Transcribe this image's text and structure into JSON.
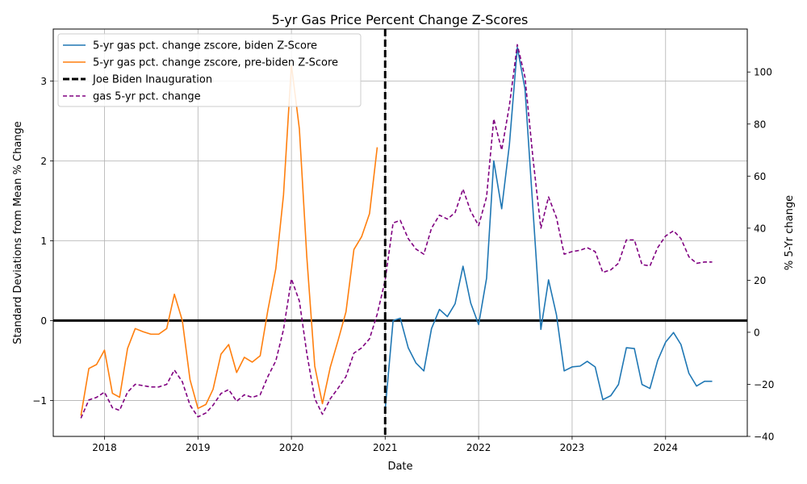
{
  "chart_data": {
    "type": "line",
    "title": "5-yr Gas Price Percent Change Z-Scores",
    "xlabel": "Date",
    "ylabel": "Standard Deviations from Mean % Change",
    "y2label": "% 5-Yr change",
    "xlim": [
      "2017-06-15",
      "2024-11-15"
    ],
    "ylim": [
      -1.45,
      3.65
    ],
    "y2lim": [
      -40,
      116.5
    ],
    "x_ticks": [
      "2018",
      "2019",
      "2020",
      "2021",
      "2022",
      "2023",
      "2024"
    ],
    "y_ticks": [
      "−1",
      "0",
      "1",
      "2",
      "3"
    ],
    "y2_ticks": [
      "−40",
      "−20",
      "0",
      "20",
      "40",
      "60",
      "80",
      "100"
    ],
    "grid": true,
    "legend_position": "top-left",
    "zero_line": 0,
    "inauguration_date": "2021-01-01",
    "series": [
      {
        "name": "5-yr gas pct. change zscore, biden Z-Score",
        "axis": "left",
        "color": "#1f77b4",
        "style": "solid",
        "x": [
          "2021-01",
          "2021-02",
          "2021-03",
          "2021-04",
          "2021-05",
          "2021-06",
          "2021-07",
          "2021-08",
          "2021-09",
          "2021-10",
          "2021-11",
          "2021-12",
          "2022-01",
          "2022-02",
          "2022-03",
          "2022-04",
          "2022-05",
          "2022-06",
          "2022-07",
          "2022-08",
          "2022-09",
          "2022-10",
          "2022-11",
          "2022-12",
          "2023-01",
          "2023-02",
          "2023-03",
          "2023-04",
          "2023-05",
          "2023-06",
          "2023-07",
          "2023-08",
          "2023-09",
          "2023-10",
          "2023-11",
          "2023-12",
          "2024-01",
          "2024-02",
          "2024-03",
          "2024-04",
          "2024-05",
          "2024-06",
          "2024-07"
        ],
        "values": [
          -1.12,
          0.0,
          0.03,
          -0.34,
          -0.53,
          -0.63,
          -0.1,
          0.14,
          0.05,
          0.21,
          0.68,
          0.22,
          -0.05,
          0.53,
          2.0,
          1.4,
          2.2,
          3.42,
          2.9,
          1.4,
          -0.11,
          0.51,
          0.07,
          -0.63,
          -0.58,
          -0.57,
          -0.51,
          -0.58,
          -0.99,
          -0.94,
          -0.8,
          -0.34,
          -0.35,
          -0.8,
          -0.85,
          -0.5,
          -0.27,
          -0.15,
          -0.3,
          -0.66,
          -0.82,
          -0.76,
          -0.76
        ]
      },
      {
        "name": "5-yr gas pct. change zscore, pre-biden Z-Score",
        "axis": "left",
        "color": "#ff7f0e",
        "style": "solid",
        "x": [
          "2017-10",
          "2017-11",
          "2017-12",
          "2018-01",
          "2018-02",
          "2018-03",
          "2018-04",
          "2018-05",
          "2018-06",
          "2018-07",
          "2018-08",
          "2018-09",
          "2018-10",
          "2018-11",
          "2018-12",
          "2019-01",
          "2019-02",
          "2019-03",
          "2019-04",
          "2019-05",
          "2019-06",
          "2019-07",
          "2019-08",
          "2019-09",
          "2019-10",
          "2019-11",
          "2019-12",
          "2020-01",
          "2020-02",
          "2020-03",
          "2020-04",
          "2020-05",
          "2020-06",
          "2020-07",
          "2020-08",
          "2020-09",
          "2020-10",
          "2020-11",
          "2020-12"
        ],
        "values": [
          -1.19,
          -0.6,
          -0.55,
          -0.37,
          -0.91,
          -0.96,
          -0.35,
          -0.1,
          -0.14,
          -0.17,
          -0.17,
          -0.1,
          0.33,
          0.0,
          -0.74,
          -1.1,
          -1.05,
          -0.86,
          -0.42,
          -0.3,
          -0.65,
          -0.46,
          -0.52,
          -0.44,
          0.13,
          0.65,
          1.57,
          3.2,
          2.4,
          0.8,
          -0.57,
          -1.04,
          -0.58,
          -0.25,
          0.11,
          0.89,
          1.05,
          1.34,
          2.17
        ]
      },
      {
        "name": "Joe Biden Inauguration",
        "axis": "left",
        "color": "#000000",
        "style": "dashed-vertical"
      },
      {
        "name": "gas 5-yr pct. change",
        "axis": "right",
        "color": "#800080",
        "style": "dashed",
        "x": [
          "2017-10",
          "2017-11",
          "2017-12",
          "2018-01",
          "2018-02",
          "2018-03",
          "2018-04",
          "2018-05",
          "2018-06",
          "2018-07",
          "2018-08",
          "2018-09",
          "2018-10",
          "2018-11",
          "2018-12",
          "2019-01",
          "2019-02",
          "2019-03",
          "2019-04",
          "2019-05",
          "2019-06",
          "2019-07",
          "2019-08",
          "2019-09",
          "2019-10",
          "2019-11",
          "2019-12",
          "2020-01",
          "2020-02",
          "2020-03",
          "2020-04",
          "2020-05",
          "2020-06",
          "2020-07",
          "2020-08",
          "2020-09",
          "2020-10",
          "2020-11",
          "2020-12",
          "2021-01",
          "2021-02",
          "2021-03",
          "2021-04",
          "2021-05",
          "2021-06",
          "2021-07",
          "2021-08",
          "2021-09",
          "2021-10",
          "2021-11",
          "2021-12",
          "2022-01",
          "2022-02",
          "2022-03",
          "2022-04",
          "2022-05",
          "2022-06",
          "2022-07",
          "2022-08",
          "2022-09",
          "2022-10",
          "2022-11",
          "2022-12",
          "2023-01",
          "2023-02",
          "2023-03",
          "2023-04",
          "2023-05",
          "2023-06",
          "2023-07",
          "2023-08",
          "2023-09",
          "2023-10",
          "2023-11",
          "2023-12",
          "2024-01",
          "2024-02",
          "2024-03",
          "2024-04",
          "2024-05",
          "2024-06",
          "2024-07"
        ],
        "values": [
          -33,
          -26,
          -25,
          -23,
          -29,
          -30,
          -23,
          -20,
          -20.5,
          -21,
          -21,
          -20,
          -14.5,
          -19,
          -28,
          -32.5,
          -31,
          -28,
          -23.5,
          -22,
          -26.5,
          -24,
          -25,
          -24,
          -17,
          -11,
          1,
          20.5,
          12,
          -8,
          -25.5,
          -31.5,
          -25.5,
          -21.5,
          -17,
          -8,
          -6,
          -2.5,
          7,
          20,
          42,
          43,
          36,
          32,
          30,
          40,
          45,
          43.5,
          46,
          55,
          46.5,
          41,
          52,
          82,
          70,
          87,
          110.5,
          98,
          67,
          40,
          52,
          44,
          30,
          31,
          31.5,
          32.5,
          31,
          23,
          24,
          26.5,
          35.5,
          35.5,
          26,
          25.5,
          32.5,
          37,
          39,
          36,
          29,
          26.5,
          27,
          27
        ]
      }
    ]
  }
}
